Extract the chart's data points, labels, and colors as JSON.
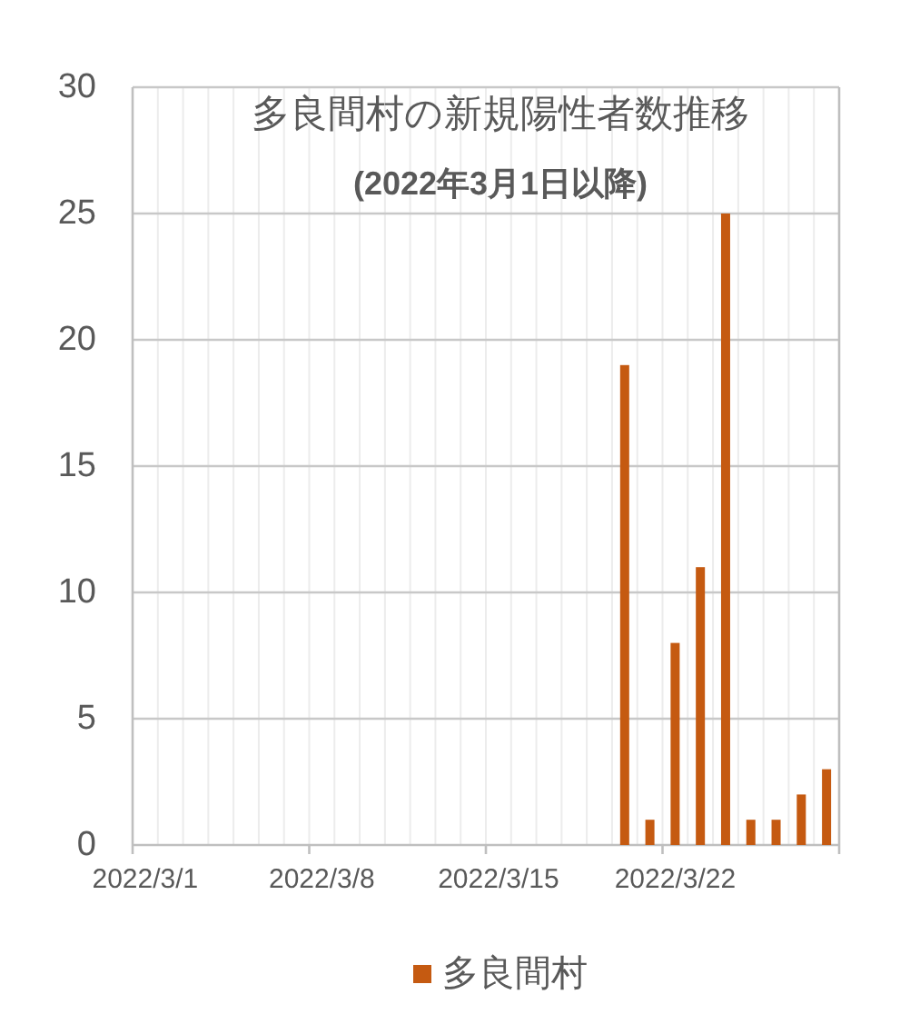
{
  "chart_data": {
    "type": "bar",
    "title": "多良間村の新規陽性者数推移",
    "subtitle": "(2022年3月1日以降)",
    "categories": [
      "2022/3/1",
      null,
      null,
      null,
      null,
      null,
      null,
      "2022/3/8",
      null,
      null,
      null,
      null,
      null,
      null,
      "2022/3/15",
      null,
      null,
      null,
      null,
      null,
      null,
      "2022/3/22",
      null,
      null,
      null,
      null,
      null,
      null
    ],
    "series": [
      {
        "name": "多良間村",
        "color": "#c55a11",
        "values": [
          null,
          null,
          null,
          null,
          null,
          null,
          null,
          null,
          null,
          null,
          null,
          null,
          null,
          null,
          null,
          null,
          null,
          null,
          null,
          19,
          1,
          8,
          11,
          25,
          1,
          1,
          2,
          3
        ]
      }
    ],
    "ylim": [
      0,
      30
    ],
    "yticks": [
      0,
      5,
      10,
      15,
      20,
      25,
      30
    ],
    "grid": true,
    "legend": "bottom"
  }
}
